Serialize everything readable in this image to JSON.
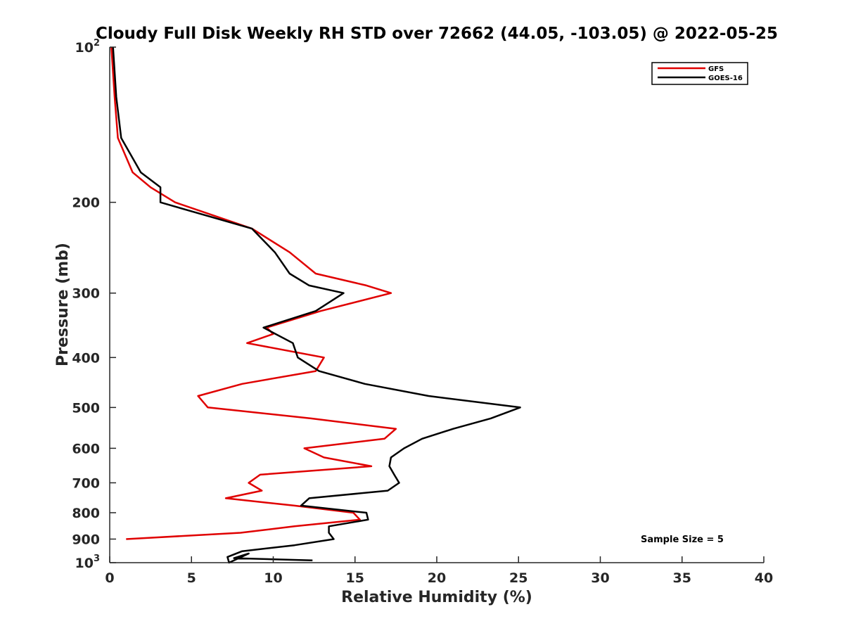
{
  "chart_data": {
    "type": "line",
    "title": "Cloudy Full Disk Weekly RH STD over 72662 (44.05, -103.05) @ 2022-05-25",
    "xlabel": "Relative Humidity (%)",
    "ylabel": "Pressure (mb)",
    "xlim": [
      0,
      40
    ],
    "ylim": [
      100,
      1000
    ],
    "y_scale": "log",
    "y_reversed": true,
    "x_ticks": [
      "0",
      "5",
      "10",
      "15",
      "20",
      "25",
      "30",
      "35",
      "40"
    ],
    "y_ticks": [
      {
        "value": 100,
        "base": "10",
        "exp": "2"
      },
      {
        "value": 200,
        "label": "200"
      },
      {
        "value": 300,
        "label": "300"
      },
      {
        "value": 400,
        "label": "400"
      },
      {
        "value": 500,
        "label": "500"
      },
      {
        "value": 600,
        "label": "600"
      },
      {
        "value": 700,
        "label": "700"
      },
      {
        "value": 800,
        "label": "800"
      },
      {
        "value": 900,
        "label": "900"
      },
      {
        "value": 1000,
        "base": "10",
        "exp": "3"
      }
    ],
    "grid": false,
    "legend_position": "top-right",
    "annotation": "Sample Size = 5",
    "series": [
      {
        "name": "GFS",
        "color": "#e00000",
        "points": [
          [
            0.1,
            100
          ],
          [
            0.3,
            125
          ],
          [
            0.5,
            150
          ],
          [
            1.4,
            175
          ],
          [
            2.5,
            187
          ],
          [
            4.0,
            200
          ],
          [
            8.7,
            225
          ],
          [
            11.0,
            250
          ],
          [
            12.6,
            275
          ],
          [
            15.7,
            290
          ],
          [
            17.2,
            300
          ],
          [
            12.9,
            325
          ],
          [
            9.6,
            350
          ],
          [
            10.0,
            360
          ],
          [
            8.4,
            375
          ],
          [
            13.1,
            400
          ],
          [
            12.6,
            425
          ],
          [
            8.1,
            450
          ],
          [
            5.4,
            475
          ],
          [
            6.0,
            500
          ],
          [
            12.3,
            525
          ],
          [
            17.5,
            550
          ],
          [
            16.8,
            575
          ],
          [
            11.9,
            600
          ],
          [
            13.1,
            625
          ],
          [
            16.0,
            650
          ],
          [
            9.2,
            675
          ],
          [
            8.5,
            700
          ],
          [
            9.3,
            725
          ],
          [
            7.1,
            750
          ],
          [
            11.3,
            775
          ],
          [
            14.9,
            800
          ],
          [
            15.3,
            825
          ],
          [
            11.3,
            850
          ],
          [
            8.0,
            875
          ],
          [
            1.0,
            900
          ]
        ]
      },
      {
        "name": "GOES-16",
        "color": "#000000",
        "points": [
          [
            0.2,
            100
          ],
          [
            0.4,
            125
          ],
          [
            0.7,
            150
          ],
          [
            1.9,
            175
          ],
          [
            3.1,
            187
          ],
          [
            3.1,
            200
          ],
          [
            8.7,
            225
          ],
          [
            10.1,
            250
          ],
          [
            11.0,
            275
          ],
          [
            12.2,
            290
          ],
          [
            14.3,
            300
          ],
          [
            12.6,
            325
          ],
          [
            9.4,
            350
          ],
          [
            11.2,
            375
          ],
          [
            11.5,
            400
          ],
          [
            12.8,
            425
          ],
          [
            15.6,
            450
          ],
          [
            19.5,
            475
          ],
          [
            25.1,
            500
          ],
          [
            23.3,
            525
          ],
          [
            21.0,
            550
          ],
          [
            19.1,
            575
          ],
          [
            18.0,
            600
          ],
          [
            17.2,
            625
          ],
          [
            17.1,
            650
          ],
          [
            17.4,
            675
          ],
          [
            17.7,
            700
          ],
          [
            17.0,
            725
          ],
          [
            12.2,
            750
          ],
          [
            11.7,
            775
          ],
          [
            15.7,
            800
          ],
          [
            15.8,
            825
          ],
          [
            13.4,
            850
          ],
          [
            13.4,
            875
          ],
          [
            13.7,
            900
          ],
          [
            11.3,
            925
          ],
          [
            8.1,
            950
          ],
          [
            7.2,
            975
          ],
          [
            7.3,
            1000
          ],
          [
            8.5,
            960
          ],
          [
            7.6,
            980
          ],
          [
            12.4,
            990
          ]
        ]
      }
    ]
  }
}
